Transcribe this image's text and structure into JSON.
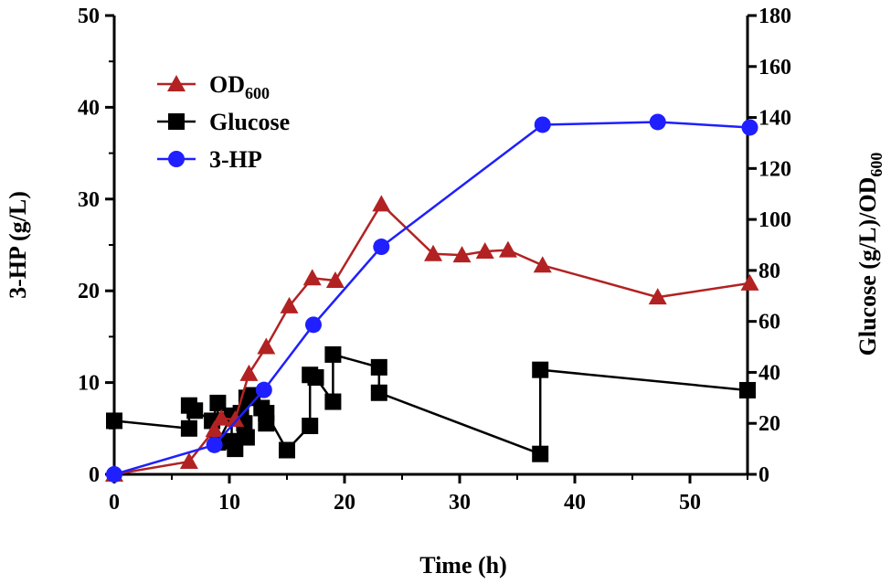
{
  "chart_data": {
    "type": "line",
    "title": "",
    "xlabel": "Time (h)",
    "ylabel_left": "3-HP (g/L)",
    "ylabel_right_parts": [
      "Glucose (g/L)/OD",
      "600"
    ],
    "xlim": [
      0,
      55
    ],
    "ylim_left": [
      0,
      50
    ],
    "ylim_right": [
      0,
      180
    ],
    "x_ticks": [
      "0",
      "10",
      "20",
      "30",
      "40",
      "50"
    ],
    "y_left_ticks": [
      "0",
      "10",
      "20",
      "30",
      "40",
      "50"
    ],
    "y_right_ticks": [
      "0",
      "20",
      "40",
      "60",
      "80",
      "100",
      "120",
      "140",
      "160",
      "180"
    ],
    "legend_placement": "top-left",
    "series": [
      {
        "name": "OD600",
        "legend_main": "OD",
        "legend_sub": "600",
        "axis": "right",
        "marker": "triangle",
        "color": "#b22222",
        "points": [
          [
            0,
            0
          ],
          [
            6.5,
            5
          ],
          [
            8.7,
            17.5
          ],
          [
            9.3,
            22
          ],
          [
            10.5,
            21.5
          ],
          [
            11.7,
            39.5
          ],
          [
            13.2,
            50
          ],
          [
            15.2,
            66
          ],
          [
            17.2,
            77
          ],
          [
            19.2,
            76
          ],
          [
            23.2,
            106
          ],
          [
            27.7,
            86.5
          ],
          [
            30.2,
            86
          ],
          [
            32.2,
            87.5
          ],
          [
            34.2,
            88
          ],
          [
            37.2,
            82
          ],
          [
            47.2,
            69.5
          ],
          [
            55.2,
            75
          ]
        ]
      },
      {
        "name": "Glucose",
        "legend_main": "Glucose",
        "legend_sub": "",
        "axis": "right",
        "marker": "square",
        "color": "#000000",
        "points": [
          [
            0,
            21
          ],
          [
            6.5,
            18
          ],
          [
            6.5,
            27
          ],
          [
            7,
            25
          ],
          [
            8.5,
            21
          ],
          [
            9,
            28
          ],
          [
            9,
            12.5
          ],
          [
            10.2,
            23
          ],
          [
            10.2,
            13
          ],
          [
            10.5,
            10
          ],
          [
            11,
            24
          ],
          [
            11.3,
            20
          ],
          [
            11.5,
            14.5
          ],
          [
            11.5,
            30
          ],
          [
            12,
            31
          ],
          [
            12.8,
            26
          ],
          [
            13.2,
            20
          ],
          [
            13.2,
            24
          ],
          [
            15,
            9.5
          ],
          [
            17,
            19
          ],
          [
            17,
            39
          ],
          [
            17.5,
            38
          ],
          [
            19,
            28.5
          ],
          [
            19,
            47
          ],
          [
            23,
            42
          ],
          [
            23,
            32
          ],
          [
            37,
            8
          ],
          [
            37,
            41
          ],
          [
            55,
            33
          ]
        ]
      },
      {
        "name": "3-HP",
        "legend_main": "3-HP",
        "legend_sub": "",
        "axis": "left",
        "marker": "circle",
        "color": "#1f1fff",
        "points": [
          [
            0,
            0
          ],
          [
            8.7,
            3.2
          ],
          [
            13,
            9.2
          ],
          [
            17.3,
            16.3
          ],
          [
            23.2,
            24.8
          ],
          [
            37.2,
            38.1
          ],
          [
            47.2,
            38.4
          ],
          [
            55.2,
            37.8
          ]
        ]
      }
    ]
  }
}
